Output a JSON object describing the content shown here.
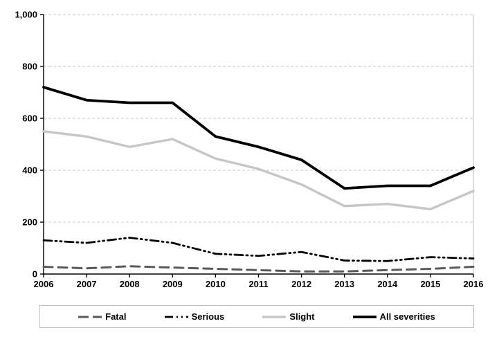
{
  "chart_data": {
    "type": "line",
    "title": "",
    "xlabel": "",
    "ylabel": "",
    "categories": [
      "2006",
      "2007",
      "2008",
      "2009",
      "2010",
      "2011",
      "2012",
      "2013",
      "2014",
      "2015",
      "2016"
    ],
    "series": [
      {
        "name": "Fatal",
        "values": [
          28,
          22,
          30,
          25,
          20,
          15,
          10,
          10,
          15,
          20,
          28
        ],
        "color": "#595959",
        "line_style": "dashed",
        "width": 3
      },
      {
        "name": "Serious",
        "values": [
          130,
          120,
          140,
          120,
          78,
          70,
          85,
          52,
          50,
          65,
          60
        ],
        "color": "#000000",
        "line_style": "dash-dot-dot",
        "width": 2.8
      },
      {
        "name": "Slight",
        "values": [
          550,
          530,
          490,
          520,
          445,
          405,
          345,
          262,
          270,
          250,
          320
        ],
        "color": "#c6c6c6",
        "line_style": "solid",
        "width": 3.4
      },
      {
        "name": "All severities",
        "values": [
          720,
          670,
          660,
          660,
          530,
          490,
          440,
          330,
          340,
          340,
          410
        ],
        "color": "#000000",
        "line_style": "solid",
        "width": 3.8
      }
    ],
    "ylim": [
      0,
      1000
    ],
    "y_ticks": [
      {
        "value": 0,
        "label": "0"
      },
      {
        "value": 200,
        "label": "200"
      },
      {
        "value": 400,
        "label": "400"
      },
      {
        "value": 600,
        "label": "600"
      },
      {
        "value": 800,
        "label": "800"
      },
      {
        "value": 1000,
        "label": "1,000"
      }
    ],
    "grid": "horizontal-dashed",
    "legend_position": "bottom"
  },
  "colors": {
    "gridline": "#c9c9c9",
    "axis": "#000000",
    "plot_right_border": "#bfbfbf",
    "legend_border": "#bfbfbf",
    "background": "#ffffff"
  }
}
